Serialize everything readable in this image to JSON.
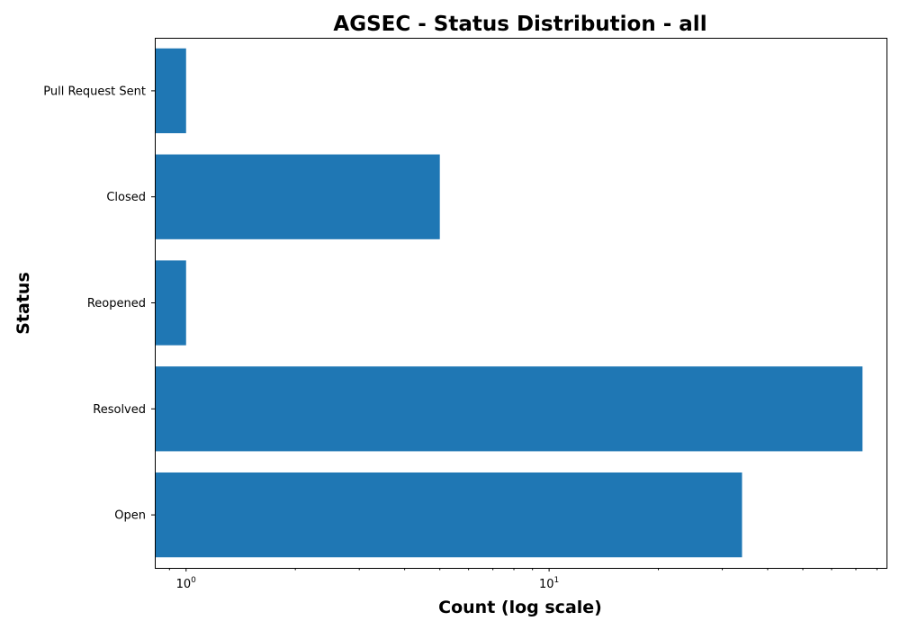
{
  "chart_data": {
    "type": "bar",
    "orientation": "horizontal",
    "title": "AGSEC - Status Distribution - all",
    "xlabel": "Count (log scale)",
    "ylabel": "Status",
    "xscale": "log",
    "xlim": [
      0.82,
      85
    ],
    "grid": false,
    "categories": [
      "Open",
      "Resolved",
      "Reopened",
      "Closed",
      "Pull Request Sent"
    ],
    "values": [
      34,
      73,
      1,
      5,
      1
    ],
    "xticks": [
      {
        "value": 1,
        "base": "10",
        "exp": "0"
      },
      {
        "value": 10,
        "base": "10",
        "exp": "1"
      }
    ],
    "bar_color": "#1f77b4"
  }
}
